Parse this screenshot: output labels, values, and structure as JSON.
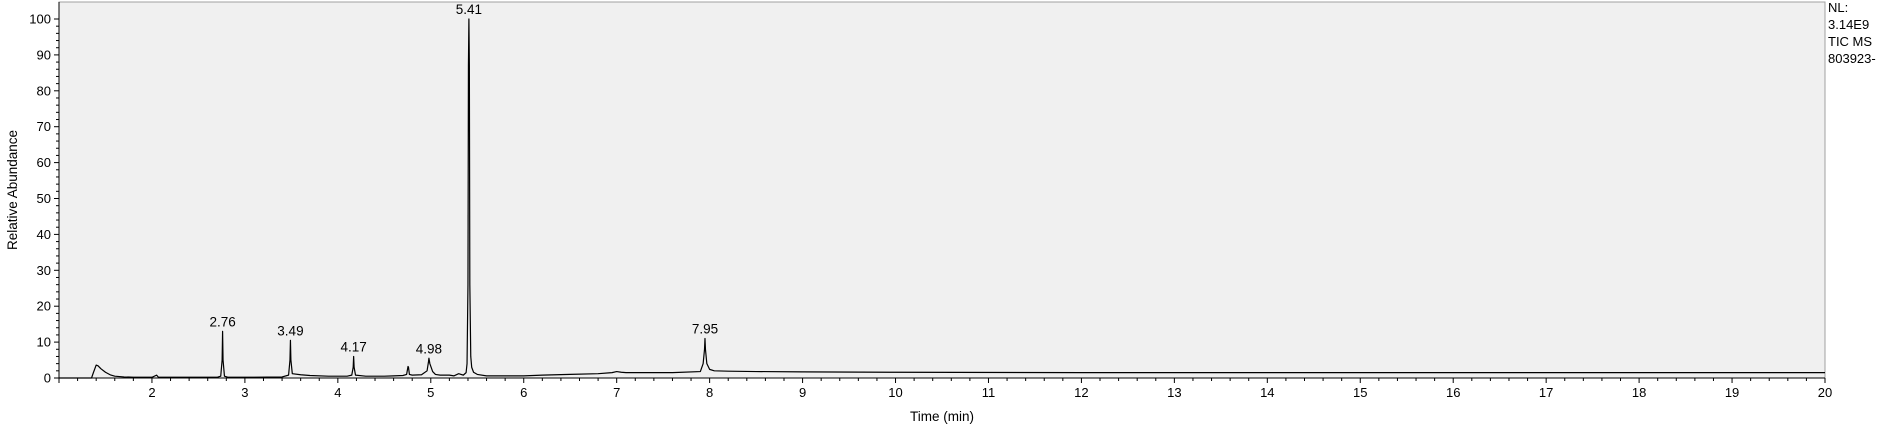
{
  "side_info": [
    "NL:",
    "3.14E9",
    "TIC  MS",
    "803923-"
  ],
  "chart_data": {
    "type": "line",
    "title": "",
    "xlabel": "Time (min)",
    "ylabel": "Relative Abundance",
    "xlim": [
      1.0,
      20.0
    ],
    "ylim": [
      0,
      100
    ],
    "x_ticks": [
      2,
      3,
      4,
      5,
      6,
      7,
      8,
      9,
      10,
      11,
      12,
      13,
      14,
      15,
      16,
      17,
      18,
      19,
      20
    ],
    "y_ticks": [
      0,
      10,
      20,
      30,
      40,
      50,
      60,
      70,
      80,
      90,
      100
    ],
    "grid": false,
    "background_color": "#f0f0f0",
    "line_color": "#000000",
    "peak_labels": [
      {
        "x": 2.76,
        "y": 13,
        "text": "2.76"
      },
      {
        "x": 3.49,
        "y": 10.5,
        "text": "3.49"
      },
      {
        "x": 4.17,
        "y": 6,
        "text": "4.17"
      },
      {
        "x": 4.98,
        "y": 5.5,
        "text": "4.98"
      },
      {
        "x": 5.41,
        "y": 100,
        "text": "5.41"
      },
      {
        "x": 7.95,
        "y": 11,
        "text": "7.95"
      }
    ],
    "series": [
      {
        "x": [
          1.0,
          1.35,
          1.37,
          1.4,
          1.42,
          1.45,
          1.5,
          1.55,
          1.6,
          1.7,
          1.8,
          2.0,
          2.05,
          2.07,
          2.1,
          2.4,
          2.7,
          2.74,
          2.755,
          2.76,
          2.765,
          2.78,
          2.82,
          3.0,
          3.4,
          3.47,
          3.485,
          3.49,
          3.495,
          3.51,
          3.6,
          3.7,
          3.9,
          4.1,
          4.15,
          4.165,
          4.17,
          4.175,
          4.19,
          4.3,
          4.4,
          4.5,
          4.6,
          4.7,
          4.74,
          4.755,
          4.76,
          4.77,
          4.8,
          4.9,
          4.96,
          4.975,
          4.98,
          4.99,
          5.02,
          5.05,
          5.1,
          5.2,
          5.25,
          5.3,
          5.35,
          5.38,
          5.39,
          5.4,
          5.405,
          5.41,
          5.415,
          5.42,
          5.43,
          5.44,
          5.46,
          5.5,
          5.6,
          5.8,
          6.0,
          6.2,
          6.5,
          6.8,
          6.95,
          7.0,
          7.05,
          7.1,
          7.3,
          7.6,
          7.9,
          7.93,
          7.945,
          7.95,
          7.955,
          7.97,
          8.0,
          8.05,
          8.2,
          8.5,
          9.0,
          10.0,
          12.0,
          15.0,
          18.0,
          20.0
        ],
        "y": [
          0,
          0,
          1.5,
          3.6,
          3.4,
          2.6,
          1.6,
          0.9,
          0.5,
          0.3,
          0.2,
          0.2,
          0.8,
          0.2,
          0.2,
          0.2,
          0.2,
          0.5,
          5.0,
          13,
          5.0,
          0.5,
          0.2,
          0.2,
          0.3,
          0.8,
          5.0,
          10.5,
          5.0,
          1.2,
          0.9,
          0.7,
          0.5,
          0.5,
          0.8,
          3.0,
          6,
          3.0,
          0.8,
          0.5,
          0.5,
          0.5,
          0.6,
          0.7,
          1.0,
          3.2,
          3.0,
          1.0,
          0.8,
          0.9,
          2.0,
          4.5,
          5.5,
          4.0,
          1.8,
          1.0,
          0.8,
          0.8,
          0.6,
          1.2,
          0.8,
          1.5,
          4.0,
          26,
          87,
          100,
          87,
          26,
          6,
          3.0,
          1.6,
          1.0,
          0.6,
          0.6,
          0.6,
          0.8,
          1.0,
          1.2,
          1.5,
          1.8,
          1.6,
          1.5,
          1.5,
          1.5,
          1.8,
          4.0,
          8.0,
          11,
          8.0,
          4.0,
          2.4,
          2.0,
          1.9,
          1.8,
          1.7,
          1.6,
          1.5,
          1.5,
          1.5,
          1.5
        ]
      }
    ]
  }
}
